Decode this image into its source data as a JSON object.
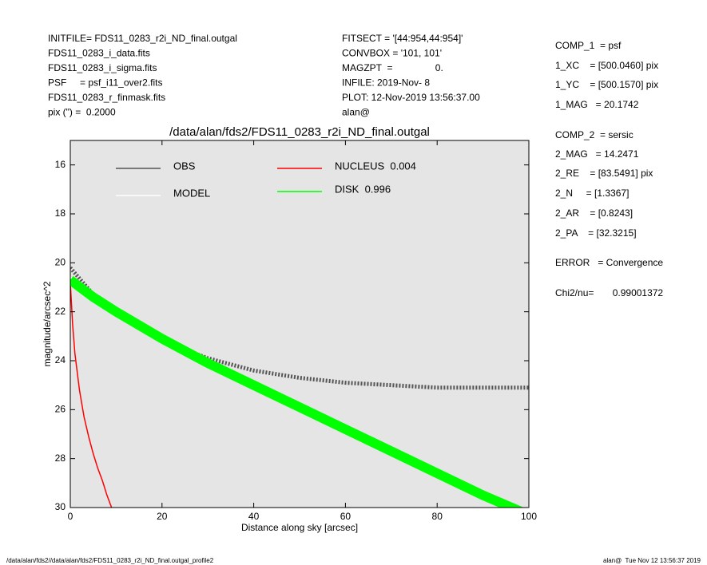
{
  "header": {
    "left": [
      "INITFILE= FDS11_0283_r2i_ND_final.outgal",
      "FDS11_0283_i_data.fits",
      "FDS11_0283_i_sigma.fits",
      "PSF     = psf_i11_over2.fits",
      "FDS11_0283_r_finmask.fits",
      "pix (\") =  0.2000"
    ],
    "middle": [
      "FITSECT = '[44:954,44:954]'",
      "CONVBOX = '101, 101'",
      "MAGZPT  =                0.",
      "INFILE: 2019-Nov- 8",
      "PLOT: 12-Nov-2019 13:56:37.00",
      "alan@"
    ],
    "right": [
      "COMP_1  = psf",
      "1_XC    = [500.0460] pix",
      "1_YC    = [500.1570] pix",
      "1_MAG   = 20.1742",
      "COMP_2  = sersic",
      "2_MAG   = 14.2471",
      "2_RE    = [83.5491] pix",
      "2_N     = [1.3367]",
      "2_AR    = [0.8243]",
      "2_PA    = [32.3215]",
      "ERROR   = Convergence",
      "Chi2/nu=       0.99001372"
    ]
  },
  "footer": {
    "left": "/data/alan/fds2//data/alan/fds2/FDS11_0283_r2i_ND_final.outgal_profile2",
    "right": "alan@  Tue Nov 12 13:56:37 2019"
  },
  "chart_data": {
    "type": "line",
    "title": "/data/alan/fds2/FDS11_0283_r2i_ND_final.outgal",
    "xlabel": "Distance along sky [arcsec]",
    "ylabel": "magnitude/arcsec^2",
    "xlim": [
      0,
      100
    ],
    "ylim": [
      30,
      15
    ],
    "xticks": [
      0,
      20,
      40,
      60,
      80,
      100
    ],
    "yticks": [
      16,
      18,
      20,
      22,
      24,
      26,
      28,
      30
    ],
    "series": [
      {
        "name": "OBS",
        "color": "#555555",
        "x": [
          0,
          5,
          10,
          20,
          30,
          40,
          50,
          60,
          70,
          80,
          90,
          100
        ],
        "values": [
          20.2,
          21.3,
          22.0,
          23.2,
          23.9,
          24.4,
          24.7,
          24.9,
          25.0,
          25.1,
          25.1,
          25.1
        ]
      },
      {
        "name": "MODEL",
        "color": "#ffffff",
        "x": [
          0,
          5,
          10,
          20,
          30,
          40,
          50,
          60,
          70,
          80,
          90,
          100
        ],
        "values": [
          20.6,
          21.3,
          21.9,
          23.0,
          24.0,
          24.9,
          25.8,
          26.7,
          27.6,
          28.5,
          29.4,
          30.2
        ]
      },
      {
        "name": "NUCLEUS  0.004",
        "color": "#ff0000",
        "x": [
          0,
          0.5,
          1,
          2,
          3,
          4,
          5,
          6,
          7,
          8,
          9
        ],
        "values": [
          20.8,
          22.5,
          23.7,
          25.2,
          26.3,
          27.1,
          27.8,
          28.4,
          28.9,
          29.5,
          30.0
        ]
      },
      {
        "name": "DISK  0.996",
        "color": "#00ff00",
        "x": [
          0,
          5,
          10,
          20,
          30,
          40,
          50,
          60,
          70,
          80,
          90,
          100
        ],
        "values": [
          20.7,
          21.4,
          22.0,
          23.1,
          24.1,
          25.0,
          25.9,
          26.8,
          27.7,
          28.6,
          29.5,
          30.3
        ]
      }
    ]
  }
}
